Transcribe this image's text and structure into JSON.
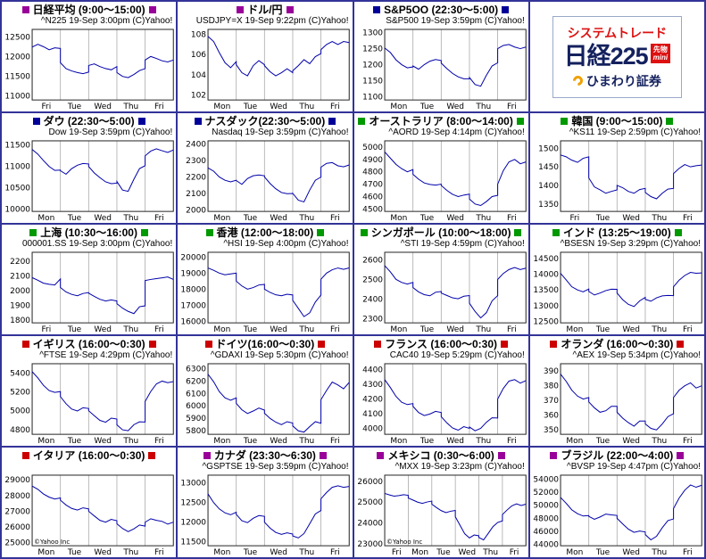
{
  "grid": {
    "columns": 4,
    "rows": 5,
    "ad_position": "row1-col4"
  },
  "style": {
    "cell_border_color": "#333399",
    "line_color": "#0000aa",
    "grid_color": "#aaaaaa",
    "plot_border_color": "#222222",
    "watermark_color": "#888888",
    "marker_purple": "#990099",
    "marker_blue": "#000099",
    "marker_green": "#009900",
    "marker_red": "#cc0000"
  },
  "ad": {
    "headline": "システムトレード",
    "product": "日経225",
    "badge_top": "先物",
    "badge_bottom": "mini",
    "company": "ひまわり証券"
  },
  "chart_data": [
    {
      "type": "line",
      "title": "日経平均 (9:00～15:00)",
      "subtitle": "^N225 19-Sep 3:00pm (C)Yahoo!",
      "marker_color": "#990099",
      "y_ticks": [
        12500,
        12000,
        11500,
        11000
      ],
      "ylim": [
        10900,
        12700
      ],
      "x_labels": [
        "Fri",
        "Tue",
        "Wed",
        "Thu",
        "Fri"
      ],
      "values": [
        12250,
        12320,
        12260,
        12180,
        12230,
        12215,
        11850,
        11700,
        11640,
        11600,
        11570,
        11610,
        11780,
        11820,
        11750,
        11700,
        11670,
        11750,
        11600,
        11500,
        11470,
        11550,
        11650,
        11700,
        11920,
        12010,
        11960,
        11900,
        11870,
        11920
      ]
    },
    {
      "type": "line",
      "title": "ドル/円",
      "subtitle": "USDJPY=X 19-Sep 9:22pm (C)Yahoo!",
      "marker_color": "#990099",
      "y_ticks": [
        108,
        106,
        104,
        102
      ],
      "ylim": [
        101.5,
        108.5
      ],
      "x_labels": [
        "Mon",
        "Tue",
        "Wed",
        "Thu",
        "Fri"
      ],
      "values": [
        107.8,
        107.3,
        106.2,
        105.2,
        104.7,
        105.3,
        105.0,
        104.2,
        103.9,
        104.9,
        105.4,
        105.0,
        104.9,
        104.3,
        103.9,
        104.2,
        104.6,
        104.2,
        104.4,
        104.9,
        105.5,
        105.1,
        105.8,
        106.1,
        106.5,
        107.0,
        107.3,
        107.0,
        107.3,
        107.2
      ]
    },
    {
      "type": "line",
      "title": "S&P5OO (22:30～5:00)",
      "subtitle": "S&P500 19-Sep 3:59pm (C)Yahoo!",
      "marker_color": "#000099",
      "y_ticks": [
        1300,
        1250,
        1200,
        1150,
        1100
      ],
      "ylim": [
        1090,
        1310
      ],
      "x_labels": [
        "Mon",
        "Tue",
        "Wed",
        "Thu",
        "Fri"
      ],
      "values": [
        1252,
        1238,
        1215,
        1200,
        1190,
        1193,
        1196,
        1186,
        1200,
        1211,
        1216,
        1213,
        1205,
        1188,
        1173,
        1162,
        1156,
        1156,
        1160,
        1138,
        1133,
        1167,
        1196,
        1206,
        1250,
        1260,
        1263,
        1255,
        1250,
        1255
      ]
    },
    {
      "type": "line",
      "title": "ダウ (22:30～5:00)",
      "subtitle": "Dow 19-Sep 3:59pm (C)Yahoo!",
      "marker_color": "#000099",
      "y_ticks": [
        11500,
        11000,
        10500,
        10000
      ],
      "ylim": [
        9950,
        11600
      ],
      "x_labels": [
        "Mon",
        "Tue",
        "Wed",
        "Thu",
        "Fri"
      ],
      "values": [
        11400,
        11290,
        11140,
        11000,
        10910,
        10917,
        10900,
        10820,
        10950,
        11030,
        11070,
        11059,
        11000,
        10850,
        10740,
        10640,
        10600,
        10609,
        10650,
        10450,
        10420,
        10700,
        10950,
        11019,
        11250,
        11360,
        11415,
        11370,
        11330,
        11388
      ]
    },
    {
      "type": "line",
      "title": "ナスダック(22:30～5:00)",
      "subtitle": "Nasdaq 19-Sep 3:59pm (C)Yahoo!",
      "marker_color": "#000099",
      "y_ticks": [
        2400,
        2300,
        2200,
        2100,
        2000
      ],
      "ylim": [
        1990,
        2420
      ],
      "x_labels": [
        "Mon",
        "Tue",
        "Wed",
        "Thu",
        "Fri"
      ],
      "values": [
        2255,
        2235,
        2200,
        2180,
        2170,
        2180,
        2178,
        2155,
        2190,
        2207,
        2212,
        2207,
        2200,
        2160,
        2128,
        2105,
        2098,
        2099,
        2100,
        2058,
        2048,
        2120,
        2180,
        2199,
        2260,
        2283,
        2287,
        2268,
        2262,
        2273
      ]
    },
    {
      "type": "line",
      "title": "オーストラリア (8:00～14:00)",
      "subtitle": "^AORD 19-Sep 4:14pm (C)Yahoo!",
      "marker_color": "#009900",
      "y_ticks": [
        5000,
        4900,
        4800,
        4700,
        4600,
        4500
      ],
      "ylim": [
        4480,
        5050
      ],
      "x_labels": [
        "Mon",
        "Tue",
        "Wed",
        "Thu",
        "Fri"
      ],
      "values": [
        4960,
        4910,
        4860,
        4825,
        4800,
        4818,
        4780,
        4740,
        4710,
        4698,
        4692,
        4700,
        4690,
        4650,
        4618,
        4600,
        4612,
        4620,
        4580,
        4540,
        4528,
        4560,
        4600,
        4610,
        4700,
        4810,
        4880,
        4900,
        4865,
        4880
      ]
    },
    {
      "type": "line",
      "title": "韓国 (9:00～15:00)",
      "subtitle": "^KS11 19-Sep 2:59pm (C)Yahoo!",
      "marker_color": "#009900",
      "y_ticks": [
        1500,
        1450,
        1400,
        1350
      ],
      "ylim": [
        1330,
        1520
      ],
      "x_labels": [
        "Fri",
        "Tue",
        "Wed",
        "Thu",
        "Fri"
      ],
      "values": [
        1482,
        1477,
        1468,
        1462,
        1473,
        1477,
        1420,
        1396,
        1388,
        1379,
        1384,
        1388,
        1400,
        1394,
        1384,
        1379,
        1389,
        1392,
        1381,
        1370,
        1364,
        1379,
        1390,
        1392,
        1432,
        1446,
        1456,
        1450,
        1453,
        1455
      ]
    },
    {
      "type": "line",
      "title": "上海 (10:30～16:00)",
      "subtitle": "000001.SS 19-Sep 3:00pm (C)Yahoo!",
      "marker_color": "#009900",
      "y_ticks": [
        2200,
        2100,
        2000,
        1900,
        1800
      ],
      "ylim": [
        1780,
        2260
      ],
      "x_labels": [
        "Fri",
        "Tue",
        "Wed",
        "Thu",
        "Fri"
      ],
      "values": [
        2088,
        2070,
        2050,
        2042,
        2038,
        2079,
        2020,
        1990,
        1974,
        1964,
        1980,
        1986,
        1982,
        1960,
        1940,
        1929,
        1936,
        1929,
        1910,
        1880,
        1858,
        1843,
        1890,
        1896,
        2068,
        2075,
        2081,
        2086,
        2092,
        2075
      ]
    },
    {
      "type": "line",
      "title": "香港 (12:00～18:00)",
      "subtitle": "^HSI 19-Sep 4:00pm (C)Yahoo!",
      "marker_color": "#009900",
      "y_ticks": [
        20000,
        19000,
        18000,
        17000,
        16000
      ],
      "ylim": [
        15900,
        20300
      ],
      "x_labels": [
        "Mon",
        "Tue",
        "Wed",
        "Thu",
        "Fri"
      ],
      "values": [
        19320,
        19180,
        19000,
        18900,
        18950,
        19000,
        18500,
        18200,
        18000,
        18100,
        18260,
        18300,
        18000,
        17800,
        17650,
        17590,
        17690,
        17637,
        17300,
        16800,
        16290,
        16520,
        17200,
        17632,
        18620,
        19000,
        19210,
        19320,
        19240,
        19327
      ]
    },
    {
      "type": "line",
      "title": "シンガポール (10:00～18:00)",
      "subtitle": "^STI 19-Sep 4:59pm (C)Yahoo!",
      "marker_color": "#009900",
      "y_ticks": [
        2600,
        2500,
        2400,
        2300
      ],
      "ylim": [
        2280,
        2640
      ],
      "x_labels": [
        "Mon",
        "Tue",
        "Wed",
        "Thu",
        "Fri"
      ],
      "values": [
        2572,
        2540,
        2502,
        2486,
        2478,
        2486,
        2460,
        2438,
        2424,
        2418,
        2436,
        2440,
        2432,
        2420,
        2408,
        2403,
        2416,
        2419,
        2380,
        2338,
        2305,
        2332,
        2392,
        2419,
        2502,
        2532,
        2552,
        2562,
        2552,
        2559
      ]
    },
    {
      "type": "line",
      "title": "インド (13:25～19:00)",
      "subtitle": "^BSESN 19-Sep 3:29pm (C)Yahoo!",
      "marker_color": "#009900",
      "y_ticks": [
        14500,
        14000,
        13500,
        13000,
        12500
      ],
      "ylim": [
        12450,
        14700
      ],
      "x_labels": [
        "Mon",
        "Tue",
        "Wed",
        "Thu",
        "Fri"
      ],
      "values": [
        14030,
        13820,
        13600,
        13500,
        13440,
        13531,
        13450,
        13340,
        13400,
        13480,
        13525,
        13518,
        13400,
        13190,
        13040,
        12970,
        13150,
        13262,
        13200,
        13140,
        13250,
        13310,
        13325,
        13315,
        13600,
        13810,
        13960,
        14060,
        14030,
        14042
      ]
    },
    {
      "type": "line",
      "title": "イギリス (16:00～0:30)",
      "subtitle": "^FTSE 19-Sep 4:29pm (C)Yahoo!",
      "marker_color": "#cc0000",
      "y_ticks": [
        5400,
        5200,
        5000,
        4800
      ],
      "ylim": [
        4750,
        5500
      ],
      "x_labels": [
        "Mon",
        "Tue",
        "Wed",
        "Thu",
        "Fri"
      ],
      "values": [
        5416,
        5350,
        5270,
        5215,
        5195,
        5204,
        5150,
        5075,
        5018,
        4998,
        5032,
        5025,
        5000,
        4948,
        4898,
        4878,
        4922,
        4912,
        4850,
        4798,
        4788,
        4852,
        4882,
        4880,
        5100,
        5205,
        5285,
        5315,
        5298,
        5311
      ]
    },
    {
      "type": "line",
      "title": "ドイツ(16:00～0:30)",
      "subtitle": "^GDAXI 19-Sep 5:30pm (C)Yahoo!",
      "marker_color": "#cc0000",
      "y_ticks": [
        6300,
        6200,
        6100,
        6000,
        5900,
        5800
      ],
      "ylim": [
        5770,
        6340
      ],
      "x_labels": [
        "Mon",
        "Tue",
        "Wed",
        "Thu",
        "Fri"
      ],
      "values": [
        6255,
        6195,
        6115,
        6065,
        6045,
        6064,
        6020,
        5968,
        5938,
        5958,
        5982,
        5965,
        5940,
        5898,
        5868,
        5848,
        5872,
        5861,
        5838,
        5798,
        5788,
        5832,
        5872,
        5860,
        6050,
        6125,
        6192,
        6168,
        6138,
        6189
      ]
    },
    {
      "type": "line",
      "title": "フランス (16:00～0:30)",
      "subtitle": "CAC40 19-Sep 5:29pm (C)Yahoo!",
      "marker_color": "#cc0000",
      "y_ticks": [
        4400,
        4300,
        4200,
        4100,
        4000
      ],
      "ylim": [
        3960,
        4440
      ],
      "x_labels": [
        "Mon",
        "Tue",
        "Wed",
        "Thu",
        "Fri"
      ],
      "values": [
        4332,
        4278,
        4218,
        4178,
        4162,
        4169,
        4150,
        4108,
        4088,
        4098,
        4116,
        4108,
        4080,
        4038,
        4003,
        3988,
        4012,
        4000,
        4010,
        3984,
        4000,
        4042,
        4072,
        4071,
        4200,
        4272,
        4322,
        4332,
        4308,
        4325
      ]
    },
    {
      "type": "line",
      "title": "オランダ (16:00～0:30)",
      "subtitle": "^AEX 19-Sep 5:34pm (C)Yahoo!",
      "marker_color": "#cc0000",
      "y_ticks": [
        390,
        380,
        370,
        360,
        350
      ],
      "ylim": [
        347,
        395
      ],
      "x_labels": [
        "Mon",
        "Tue",
        "Wed",
        "Thu",
        "Fri"
      ],
      "values": [
        388,
        383,
        377,
        373,
        371,
        372,
        369,
        365,
        362,
        363,
        366,
        366,
        362,
        358,
        355,
        352.5,
        356,
        356,
        354,
        351,
        350,
        354,
        359,
        361,
        372,
        377,
        380,
        382,
        378.5,
        380
      ]
    },
    {
      "type": "line",
      "title": "イタリア (16:00～0:30)",
      "subtitle": "",
      "marker_color": "#cc0000",
      "y_ticks": [
        29000,
        28000,
        27000,
        26000,
        25000
      ],
      "ylim": [
        24800,
        29300
      ],
      "x_labels": [
        "Mon",
        "Tue",
        "Wed",
        "Thu",
        "Fri"
      ],
      "watermark": "©Yahoo Inc",
      "values": [
        28600,
        28400,
        28100,
        27900,
        27780,
        27850,
        27700,
        27400,
        27180,
        27080,
        27220,
        27150,
        27000,
        26700,
        26420,
        26300,
        26480,
        26400,
        26200,
        25900,
        25700,
        25880,
        26120,
        26050,
        26300,
        26520,
        26420,
        26350,
        26180,
        26300
      ]
    },
    {
      "type": "line",
      "title": "カナダ (23:30～6:30)",
      "subtitle": "^GSPTSE 19-Sep 3:59pm (C)Yahoo!",
      "marker_color": "#990099",
      "y_ticks": [
        13000,
        12500,
        12000,
        11500
      ],
      "ylim": [
        11400,
        13200
      ],
      "x_labels": [
        "Mon",
        "Tue",
        "Wed",
        "Thu",
        "Fri"
      ],
      "values": [
        12720,
        12500,
        12340,
        12240,
        12190,
        12254,
        12200,
        12040,
        11990,
        12100,
        12170,
        12150,
        12000,
        11850,
        11740,
        11690,
        11730,
        11700,
        11650,
        11600,
        11710,
        11960,
        12210,
        12300,
        12600,
        12760,
        12890,
        12930,
        12890,
        12913
      ]
    },
    {
      "type": "line",
      "title": "メキシコ (0:30～6:00)",
      "subtitle": "^MXX 19-Sep 3:23pm (C)Yahoo!",
      "marker_color": "#990099",
      "y_ticks": [
        26000,
        25000,
        24000,
        23000
      ],
      "ylim": [
        22900,
        26300
      ],
      "x_labels": [
        "Fri",
        "Mon",
        "Tue",
        "Wed",
        "Thu",
        "Fri"
      ],
      "watermark": "©Yahoo Inc",
      "values": [
        25420,
        25350,
        25290,
        25320,
        25360,
        25330,
        25200,
        25100,
        25000,
        24940,
        25010,
        25050,
        24900,
        24740,
        24590,
        24500,
        24560,
        24600,
        24300,
        23880,
        23480,
        23280,
        23420,
        23380,
        23300,
        23180,
        23500,
        23820,
        24020,
        24100,
        24400,
        24620,
        24820,
        24920,
        24840,
        24900
      ]
    },
    {
      "type": "line",
      "title": "ブラジル (22:00～4:00)",
      "subtitle": "^BVSP 19-Sep 4:47pm (C)Yahoo!",
      "marker_color": "#990099",
      "y_ticks": [
        54000,
        52000,
        50000,
        48000,
        46000,
        44000
      ],
      "ylim": [
        43800,
        54600
      ],
      "x_labels": [
        "Mon",
        "Tue",
        "Wed",
        "Thu",
        "Fri"
      ],
      "values": [
        51200,
        50300,
        49300,
        48700,
        48350,
        48416,
        48300,
        47850,
        48200,
        48650,
        48520,
        48436,
        48000,
        47150,
        46350,
        45850,
        46050,
        45908,
        45500,
        44700,
        45250,
        46550,
        47650,
        47902,
        49500,
        51100,
        52300,
        53100,
        52750,
        53055
      ]
    }
  ]
}
